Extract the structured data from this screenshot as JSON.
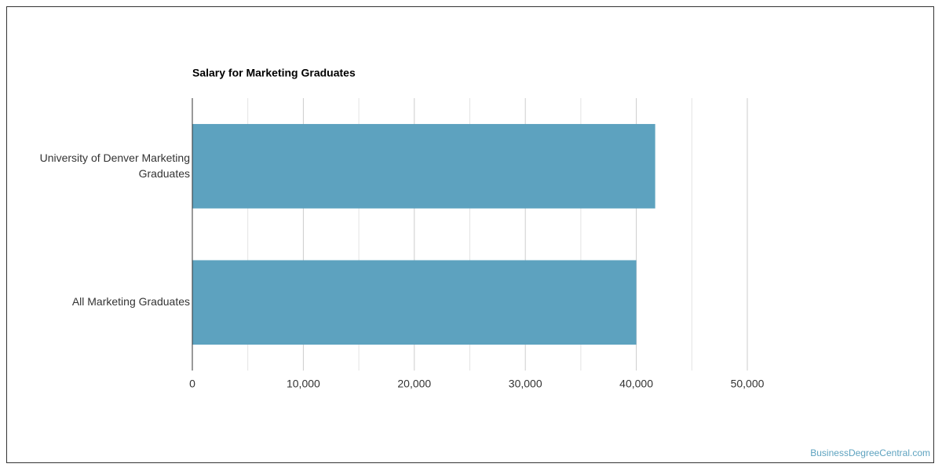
{
  "chart_data": {
    "type": "hbar",
    "title": "Salary for Marketing Graduates",
    "categories": [
      "University of Denver Marketing Graduates",
      "All Marketing Graduates"
    ],
    "values": [
      41700,
      40000
    ],
    "color": "#5da2bf",
    "xlim": [
      0,
      50000
    ],
    "xticks": [
      0,
      {
        "value": 10000,
        "label": "10,000"
      },
      {
        "value": 20000,
        "label": "20,000"
      },
      {
        "value": 30000,
        "label": "30,000"
      },
      {
        "value": 40000,
        "label": "40,000"
      },
      {
        "value": 50000,
        "label": "50,000"
      }
    ],
    "minor_xticks": [
      5000,
      15000,
      25000,
      35000,
      45000
    ],
    "grid": true
  },
  "watermark": "BusinessDegreeCentral.com"
}
